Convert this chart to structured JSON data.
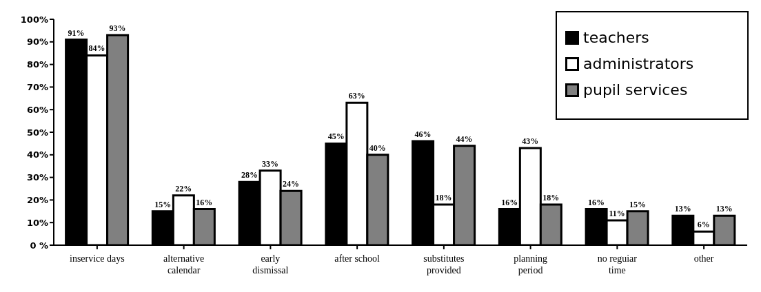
{
  "chart_data": {
    "type": "bar",
    "categories": [
      "inservice days",
      "alternative\ncalendar",
      "early\ndismissal",
      "after school",
      "substitutes\nprovided",
      "planning\nperiod",
      "no reguiar\ntime",
      "other"
    ],
    "series": [
      {
        "name": "teachers",
        "color": "#000000",
        "values": [
          91,
          15,
          28,
          45,
          46,
          16,
          16,
          13
        ],
        "value_labels": [
          "91%",
          "15%",
          "28%",
          "45%",
          "46%",
          "16%",
          "16%",
          "13%"
        ]
      },
      {
        "name": "administrators",
        "color": "#ffffff",
        "values": [
          84,
          22,
          33,
          63,
          18,
          43,
          11,
          6
        ],
        "value_labels": [
          "84%",
          "22%",
          "33%",
          "63%",
          "18%",
          "43%",
          "11%",
          "6%"
        ]
      },
      {
        "name": "pupil services",
        "color": "#808080",
        "values": [
          93,
          16,
          24,
          40,
          44,
          18,
          15,
          13
        ],
        "value_labels": [
          "93%",
          "16%",
          "24%",
          "40%",
          "44%",
          "18%",
          "15%",
          "13%"
        ]
      }
    ],
    "ylim": [
      0,
      100
    ],
    "yticks": [
      {
        "value": 0,
        "label": "0 %"
      },
      {
        "value": 10,
        "label": "10%"
      },
      {
        "value": 20,
        "label": "20%"
      },
      {
        "value": 30,
        "label": "30%"
      },
      {
        "value": 40,
        "label": "40%"
      },
      {
        "value": 50,
        "label": "50%"
      },
      {
        "value": 60,
        "label": "60%"
      },
      {
        "value": 70,
        "label": "70%"
      },
      {
        "value": 80,
        "label": "80%"
      },
      {
        "value": 90,
        "label": "90%"
      },
      {
        "value": 100,
        "label": "100%"
      }
    ],
    "legend": "top right",
    "grid": false
  }
}
